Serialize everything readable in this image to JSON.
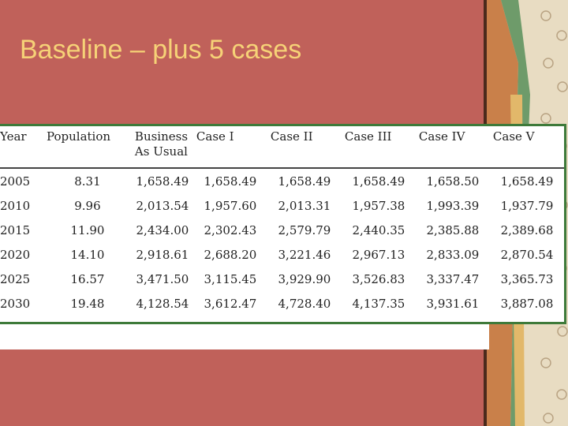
{
  "slide": {
    "title": "Baseline – plus 5 cases"
  },
  "table": {
    "headers": [
      "Year",
      "Population",
      "Business As Usual",
      "Case I",
      "Case II",
      "Case III",
      "Case IV",
      "Case V"
    ],
    "rows": [
      [
        "2005",
        "8.31",
        "1,658.49",
        "1,658.49",
        "1,658.49",
        "1,658.49",
        "1,658.50",
        "1,658.49"
      ],
      [
        "2010",
        "9.96",
        "2,013.54",
        "1,957.60",
        "2,013.31",
        "1,957.38",
        "1,993.39",
        "1,937.79"
      ],
      [
        "2015",
        "11.90",
        "2,434.00",
        "2,302.43",
        "2,579.79",
        "2,440.35",
        "2,385.88",
        "2,389.68"
      ],
      [
        "2020",
        "14.10",
        "2,918.61",
        "2,688.20",
        "3,221.46",
        "2,967.13",
        "2,833.09",
        "2,870.54"
      ],
      [
        "2025",
        "16.57",
        "3,471.50",
        "3,115.45",
        "3,929.90",
        "3,526.83",
        "3,337.47",
        "3,365.73"
      ],
      [
        "2030",
        "19.48",
        "4,128.54",
        "3,612.47",
        "4,728.40",
        "4,137.35",
        "3,931.61",
        "3,887.08"
      ]
    ]
  },
  "colors": {
    "background": "#c0615a",
    "title": "#f6d277",
    "rule": "#3e7a3a",
    "panel": "#e8dcc2"
  }
}
